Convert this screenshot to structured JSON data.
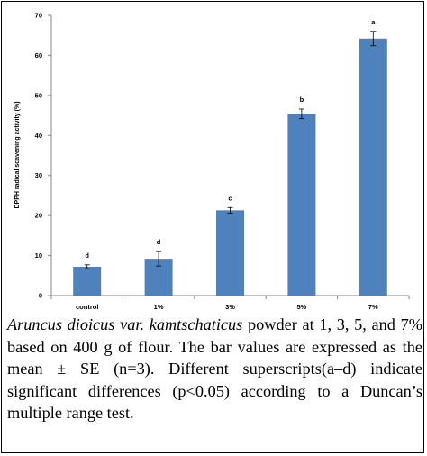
{
  "chart_data": {
    "type": "bar",
    "categories": [
      "control",
      "1%",
      "3%",
      "5%",
      "7%"
    ],
    "values": [
      7.2,
      9.2,
      21.3,
      45.4,
      64.2
    ],
    "errors": [
      0.5,
      1.8,
      0.7,
      1.2,
      1.8
    ],
    "significance": [
      "d",
      "d",
      "c",
      "b",
      "a"
    ],
    "ylabel": "DPPH radical scavening activity (%)",
    "xlabel": "",
    "ylim": [
      0,
      70
    ],
    "yticks": [
      0,
      10,
      20,
      30,
      40,
      50,
      60,
      70
    ],
    "bar_color": "#4f81bd",
    "grid": false,
    "legend": false
  },
  "caption": {
    "species": "Aruncus dioicus var. kamtschaticus",
    "rest": " powder at 1, 3, 5, and 7% based on 400 g of flour. The bar values are expressed as the mean ± SE (n=3). Different superscripts(a–d) indicate significant differences (p<0.05) according to a Duncan’s multiple range test."
  }
}
